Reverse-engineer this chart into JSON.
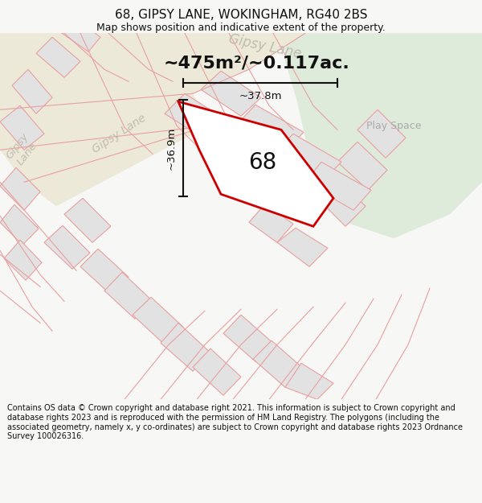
{
  "title": "68, GIPSY LANE, WOKINGHAM, RG40 2BS",
  "subtitle": "Map shows position and indicative extent of the property.",
  "area_label": "~475m²/~0.117ac.",
  "property_number": "68",
  "dim_width": "~37.8m",
  "dim_height": "~36.9m",
  "play_space_label": "Play Space",
  "gipsy_lane_diag": "Gipsy Lane",
  "gipsy_lane_bottom": "Gipsy Lane",
  "gipsy_lane_left": "Gipsy\nLane",
  "footer": "Contains OS data © Crown copyright and database right 2021. This information is subject to Crown copyright and database rights 2023 and is reproduced with the permission of HM Land Registry. The polygons (including the associated geometry, namely x, y co-ordinates) are subject to Crown copyright and database rights 2023 Ordnance Survey 100026316.",
  "bg_color": "#f7f7f5",
  "map_bg": "#f7f7f5",
  "building_fill": "#e2e2e2",
  "building_edge": "#e8a0a0",
  "green_fill": "#deeada",
  "property_fill": "#ffffff",
  "property_edge": "#cc0000",
  "dim_line_color": "#111111",
  "road_label_color": "#c0bcb0",
  "footer_color": "#111111",
  "title_color": "#111111",
  "road_color": "#ede9d8",
  "road_line_color": "#e8a0a0"
}
